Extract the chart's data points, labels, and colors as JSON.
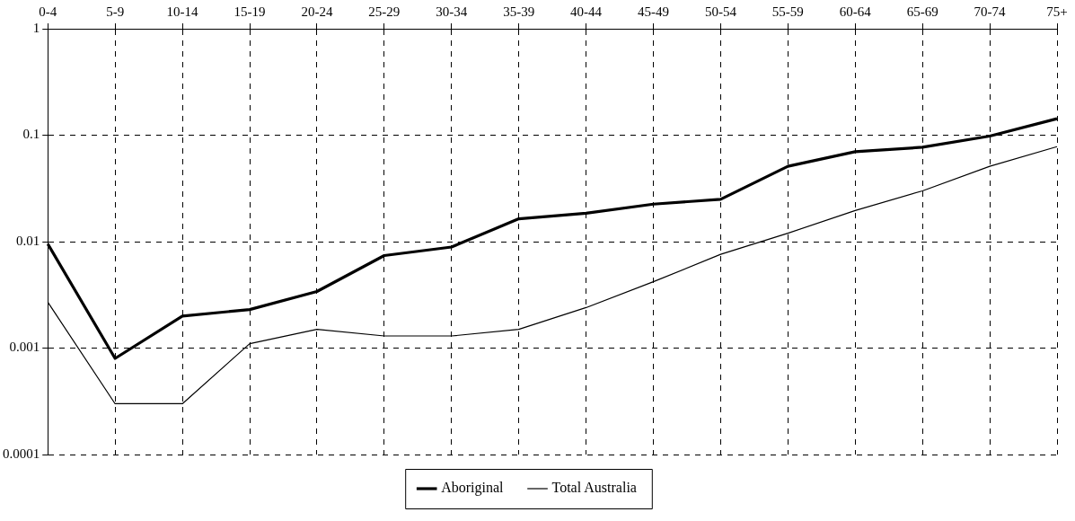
{
  "chart_data": {
    "type": "line",
    "categories": [
      "0-4",
      "5-9",
      "10-14",
      "15-19",
      "20-24",
      "25-29",
      "30-34",
      "35-39",
      "40-44",
      "45-49",
      "50-54",
      "55-59",
      "60-64",
      "65-69",
      "70-74",
      "75+"
    ],
    "series": [
      {
        "name": "Aboriginal",
        "color": "#000000",
        "values": [
          0.0095,
          0.0008,
          0.002,
          0.0023,
          0.0034,
          0.0074,
          0.0089,
          0.0164,
          0.0185,
          0.0225,
          0.025,
          0.051,
          0.07,
          0.077,
          0.098,
          0.143
        ]
      },
      {
        "name": "Total Australia",
        "color": "#000000",
        "values": [
          0.0027,
          0.0003,
          0.0003,
          0.0011,
          0.0015,
          0.0013,
          0.0013,
          0.0015,
          0.0024,
          0.0042,
          0.0076,
          0.012,
          0.0196,
          0.03,
          0.051,
          0.078
        ]
      }
    ],
    "log": "y",
    "ylim": [
      0.0001,
      1
    ],
    "yticks": [
      0.0001,
      0.001,
      0.01,
      0.1,
      1
    ],
    "grid": true,
    "legend": "bottom",
    "marker": "none",
    "line_style": "solid"
  }
}
